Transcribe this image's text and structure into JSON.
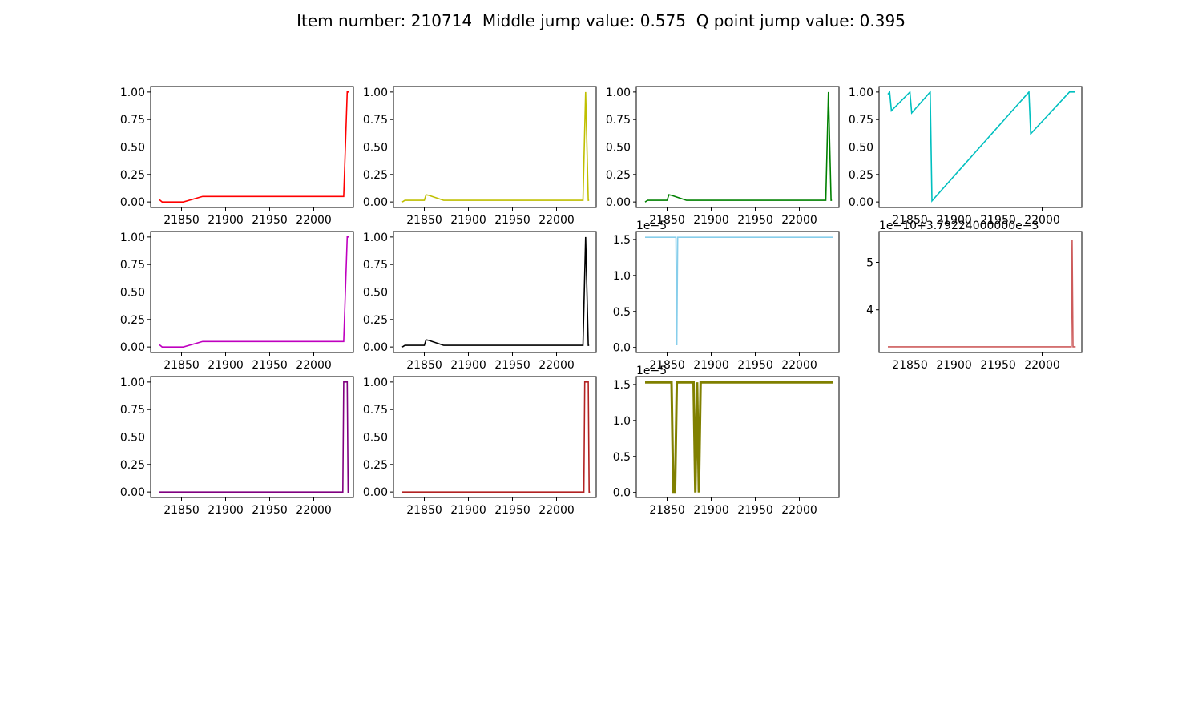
{
  "figure": {
    "title": "Item number: 210714  Middle jump value: 0.575  Q point jump value: 0.395"
  },
  "chart_data": [
    {
      "type": "line",
      "color": "#ff0000",
      "offset_text": "",
      "xlim": [
        21815,
        22045
      ],
      "ylim": [
        -0.05,
        1.05
      ],
      "xticks": [
        21850,
        21900,
        21950,
        22000
      ],
      "xtick_labels": [
        "21850",
        "21900",
        "21950",
        "22000"
      ],
      "yticks": [
        0,
        0.25,
        0.5,
        0.75,
        1.0
      ],
      "ytick_labels": [
        "0.00",
        "0.25",
        "0.50",
        "0.75",
        "1.00"
      ],
      "x": [
        21825,
        21828,
        21840,
        21852,
        21874,
        22034,
        22038,
        22040
      ],
      "y": [
        0.02,
        0.0,
        0.0,
        0.0,
        0.05,
        0.05,
        1.0,
        1.0
      ]
    },
    {
      "type": "line",
      "color": "#bfbf00",
      "offset_text": "",
      "xlim": [
        21815,
        22045
      ],
      "ylim": [
        -0.05,
        1.05
      ],
      "xticks": [
        21850,
        21900,
        21950,
        22000
      ],
      "xtick_labels": [
        "21850",
        "21900",
        "21950",
        "22000"
      ],
      "yticks": [
        0,
        0.25,
        0.5,
        0.75,
        1.0
      ],
      "ytick_labels": [
        "0.00",
        "0.25",
        "0.50",
        "0.75",
        "1.00"
      ],
      "x": [
        21825,
        21828,
        21850,
        21852,
        21855,
        21872,
        22030,
        22033,
        22036,
        22037
      ],
      "y": [
        0.0,
        0.015,
        0.015,
        0.065,
        0.06,
        0.015,
        0.015,
        1.0,
        0.015,
        0.015
      ]
    },
    {
      "type": "line",
      "color": "#008000",
      "offset_text": "",
      "xlim": [
        21815,
        22045
      ],
      "ylim": [
        -0.05,
        1.05
      ],
      "xticks": [
        21850,
        21900,
        21950,
        22000
      ],
      "xtick_labels": [
        "21850",
        "21900",
        "21950",
        "22000"
      ],
      "yticks": [
        0,
        0.25,
        0.5,
        0.75,
        1.0
      ],
      "ytick_labels": [
        "0.00",
        "0.25",
        "0.50",
        "0.75",
        "1.00"
      ],
      "x": [
        21825,
        21828,
        21850,
        21852,
        21855,
        21872,
        22030,
        22033,
        22036,
        22037
      ],
      "y": [
        0.0,
        0.015,
        0.015,
        0.065,
        0.06,
        0.015,
        0.015,
        1.0,
        0.015,
        0.015
      ]
    },
    {
      "type": "line",
      "color": "#00bfbf",
      "offset_text": "",
      "xlim": [
        21815,
        22045
      ],
      "ylim": [
        -0.05,
        1.05
      ],
      "xticks": [
        21850,
        21900,
        21950,
        22000
      ],
      "xtick_labels": [
        "21850",
        "21900",
        "21950",
        "22000"
      ],
      "yticks": [
        0,
        0.25,
        0.5,
        0.75,
        1.0
      ],
      "ytick_labels": [
        "0.00",
        "0.25",
        "0.50",
        "0.75",
        "1.00"
      ],
      "x": [
        21825,
        21827,
        21829,
        21850,
        21852,
        21873,
        21875,
        21985,
        21987,
        22031,
        22037
      ],
      "y": [
        0.98,
        1.0,
        0.83,
        1.0,
        0.81,
        1.0,
        0.01,
        1.0,
        0.62,
        1.0,
        1.0
      ]
    },
    {
      "type": "line",
      "color": "#bf00bf",
      "offset_text": "",
      "xlim": [
        21815,
        22045
      ],
      "ylim": [
        -0.05,
        1.05
      ],
      "xticks": [
        21850,
        21900,
        21950,
        22000
      ],
      "xtick_labels": [
        "21850",
        "21900",
        "21950",
        "22000"
      ],
      "yticks": [
        0,
        0.25,
        0.5,
        0.75,
        1.0
      ],
      "ytick_labels": [
        "0.00",
        "0.25",
        "0.50",
        "0.75",
        "1.00"
      ],
      "x": [
        21825,
        21828,
        21840,
        21852,
        21874,
        22034,
        22038,
        22040
      ],
      "y": [
        0.02,
        0.0,
        0.0,
        0.0,
        0.05,
        0.05,
        1.0,
        1.0
      ]
    },
    {
      "type": "line",
      "color": "#000000",
      "offset_text": "",
      "xlim": [
        21815,
        22045
      ],
      "ylim": [
        -0.05,
        1.05
      ],
      "xticks": [
        21850,
        21900,
        21950,
        22000
      ],
      "xtick_labels": [
        "21850",
        "21900",
        "21950",
        "22000"
      ],
      "yticks": [
        0,
        0.25,
        0.5,
        0.75,
        1.0
      ],
      "ytick_labels": [
        "0.00",
        "0.25",
        "0.50",
        "0.75",
        "1.00"
      ],
      "x": [
        21825,
        21828,
        21850,
        21852,
        21855,
        21872,
        22030,
        22033,
        22036,
        22037
      ],
      "y": [
        0.0,
        0.015,
        0.015,
        0.065,
        0.06,
        0.015,
        0.015,
        1.0,
        0.015,
        0.015
      ]
    },
    {
      "type": "line",
      "color": "#87ceeb",
      "offset_text": "1e−5",
      "xlim": [
        21815,
        22045
      ],
      "ylim": [
        -0.07,
        1.61
      ],
      "xticks": [
        21850,
        21900,
        21950,
        22000
      ],
      "xtick_labels": [
        "21850",
        "21900",
        "21950",
        "22000"
      ],
      "yticks": [
        0,
        0.5,
        1.0,
        1.5
      ],
      "ytick_labels": [
        "0.0",
        "0.5",
        "1.0",
        "1.5"
      ],
      "x": [
        21825,
        21860,
        21861,
        21862,
        21863,
        22038
      ],
      "y": [
        1.53,
        1.53,
        0.03,
        1.53,
        1.53,
        1.53
      ]
    },
    {
      "type": "line",
      "color": "#cd5c5c",
      "offset_text": "1e−10+3.79224000000e−3",
      "xlim": [
        21815,
        22045
      ],
      "ylim": [
        3.1,
        5.65
      ],
      "xticks": [
        21850,
        21900,
        21950,
        22000
      ],
      "xtick_labels": [
        "21850",
        "21900",
        "21950",
        "22000"
      ],
      "yticks": [
        4,
        5
      ],
      "ytick_labels": [
        "4",
        "5"
      ],
      "x": [
        21825,
        22033,
        22034,
        22035,
        22038
      ],
      "y": [
        3.22,
        3.22,
        5.48,
        3.22,
        3.22
      ]
    },
    {
      "type": "line",
      "color": "#800080",
      "offset_text": "",
      "xlim": [
        21815,
        22045
      ],
      "ylim": [
        -0.05,
        1.05
      ],
      "xticks": [
        21850,
        21900,
        21950,
        22000
      ],
      "xtick_labels": [
        "21850",
        "21900",
        "21950",
        "22000"
      ],
      "yticks": [
        0,
        0.25,
        0.5,
        0.75,
        1.0
      ],
      "ytick_labels": [
        "0.00",
        "0.25",
        "0.50",
        "0.75",
        "1.00"
      ],
      "x": [
        21825,
        22033,
        22034,
        22038,
        22039,
        22040
      ],
      "y": [
        0.0,
        0.0,
        1.0,
        1.0,
        0.0,
        0.0
      ]
    },
    {
      "type": "line",
      "color": "#b22222",
      "offset_text": "",
      "xlim": [
        21815,
        22045
      ],
      "ylim": [
        -0.05,
        1.05
      ],
      "xticks": [
        21850,
        21900,
        21950,
        22000
      ],
      "xtick_labels": [
        "21850",
        "21900",
        "21950",
        "22000"
      ],
      "yticks": [
        0,
        0.25,
        0.5,
        0.75,
        1.0
      ],
      "ytick_labels": [
        "0.00",
        "0.25",
        "0.50",
        "0.75",
        "1.00"
      ],
      "x": [
        21825,
        22031,
        22032,
        22036,
        22037,
        22038
      ],
      "y": [
        0.0,
        0.0,
        1.0,
        1.0,
        0.0,
        0.0
      ]
    },
    {
      "type": "line",
      "color": "#808000",
      "offset_text": "1e−5",
      "xlim": [
        21815,
        22045
      ],
      "ylim": [
        -0.07,
        1.61
      ],
      "xticks": [
        21850,
        21900,
        21950,
        22000
      ],
      "xtick_labels": [
        "21850",
        "21900",
        "21950",
        "22000"
      ],
      "yticks": [
        0,
        0.5,
        1.0,
        1.5
      ],
      "ytick_labels": [
        "0.0",
        "0.5",
        "1.0",
        "1.5"
      ],
      "x": [
        21825,
        21855,
        21857,
        21859,
        21861,
        21880,
        21882,
        21884,
        21886,
        21888,
        22038
      ],
      "y": [
        1.53,
        1.53,
        0.0,
        0.0,
        1.53,
        1.53,
        0.0,
        1.53,
        0.0,
        1.53,
        1.53
      ]
    }
  ]
}
